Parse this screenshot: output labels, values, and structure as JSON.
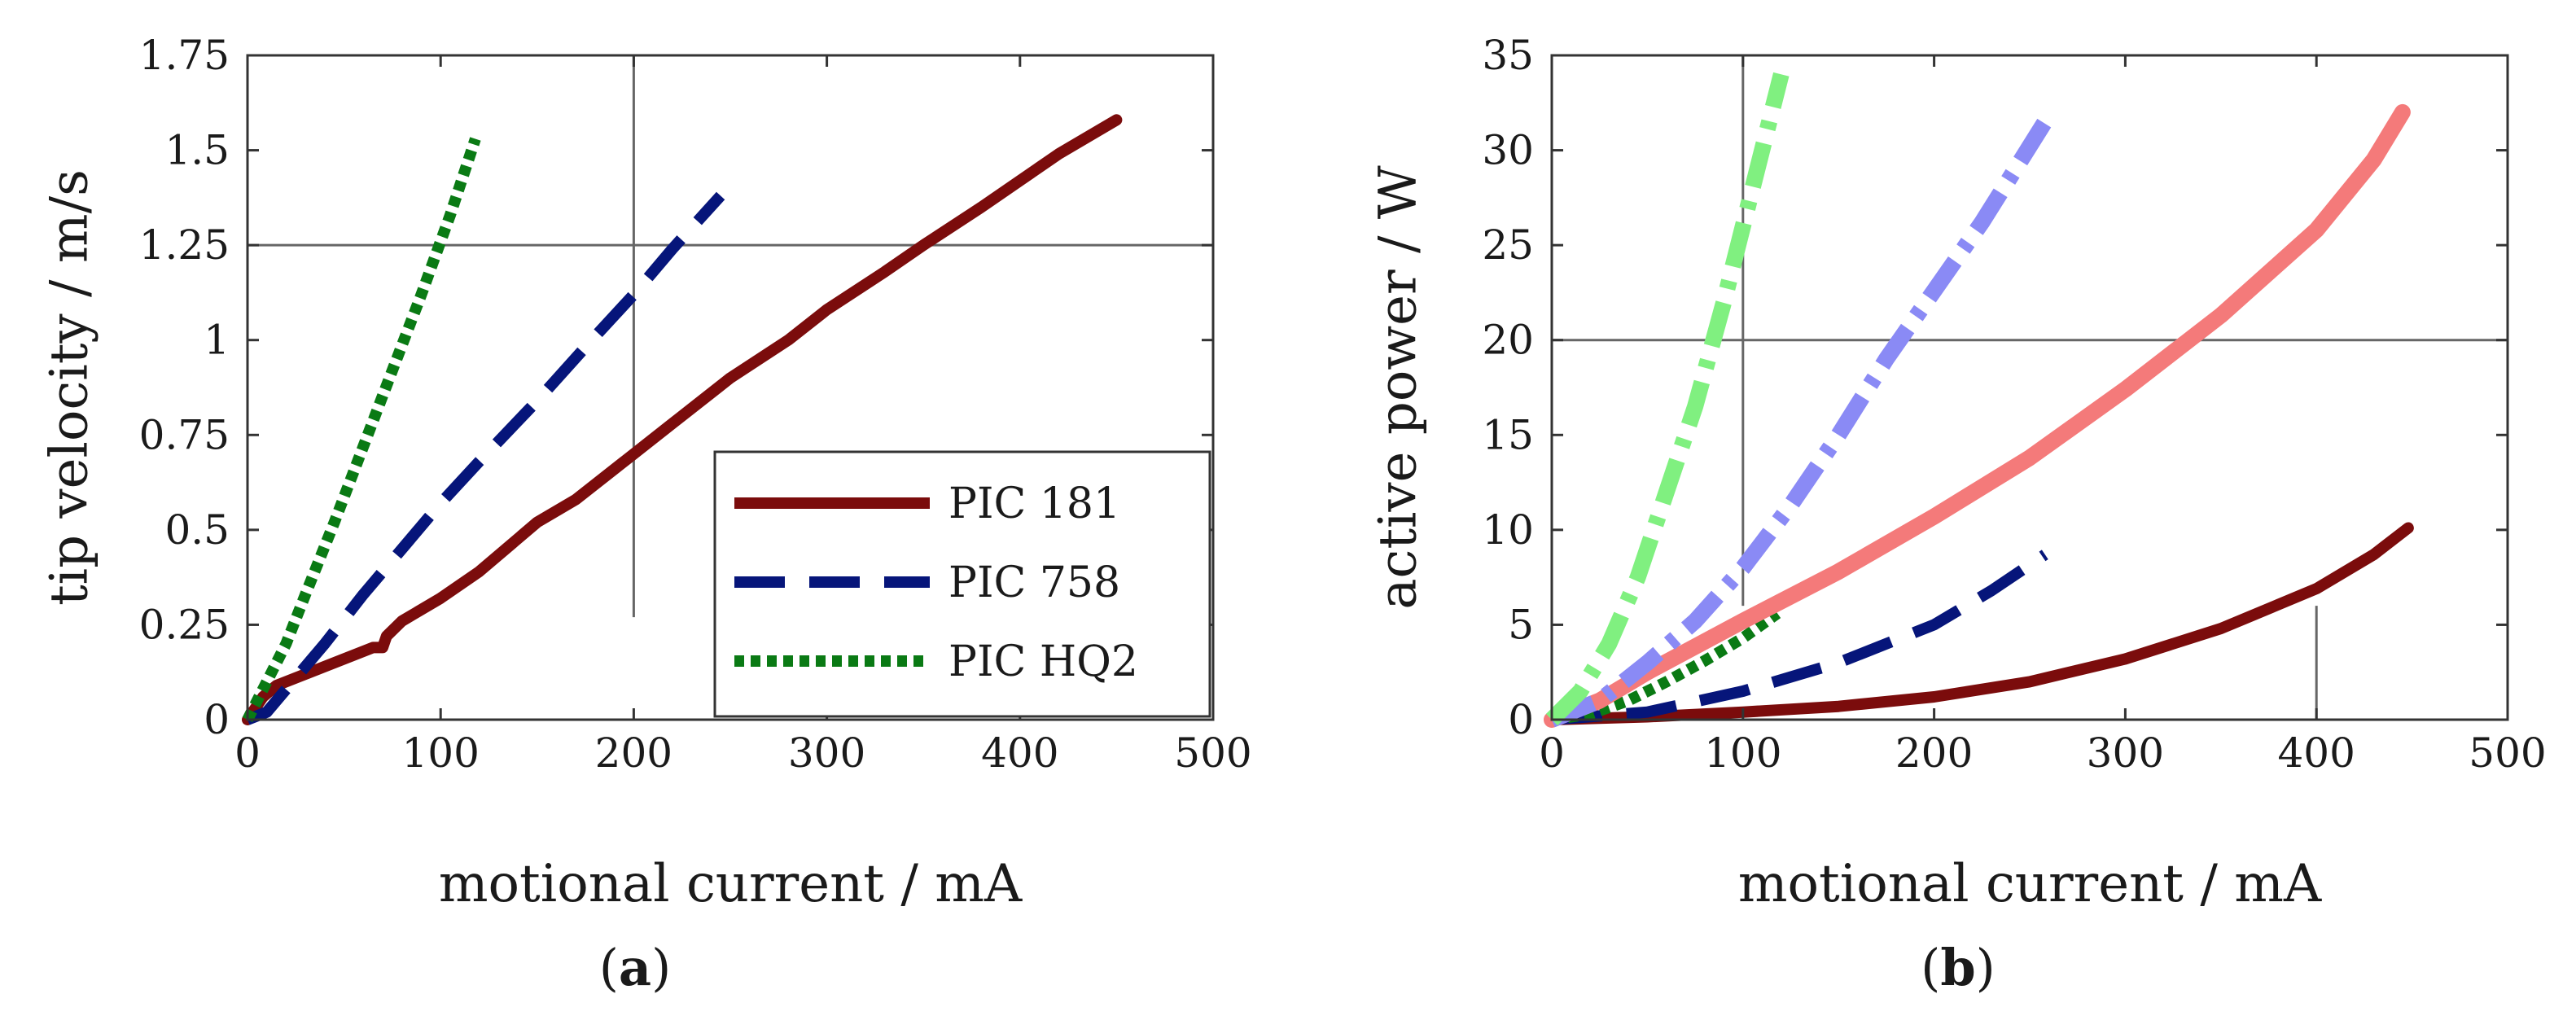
{
  "chart_data": [
    {
      "type": "line",
      "panel_label": "a",
      "xlabel": "motional current / mA",
      "ylabel": "tip velocity / m/s",
      "xlim": [
        0,
        500
      ],
      "ylim": [
        0,
        1.75
      ],
      "xticks": [
        "0",
        "100",
        "200",
        "300",
        "400",
        "500"
      ],
      "yticks": [
        "0",
        "0.25",
        "0.5",
        "0.75",
        "1",
        "1.25",
        "1.5",
        "1.75"
      ],
      "reference_lines": [
        {
          "axis": "x",
          "value": 200,
          "from": 0.27,
          "to": 1.75
        },
        {
          "axis": "y",
          "value": 1.25,
          "from": 0,
          "to": 500
        }
      ],
      "legend": {
        "placement": "lower-right"
      },
      "series": [
        {
          "name": "PIC 181",
          "color": "#7b0c0c",
          "dash": "solid",
          "x": [
            0,
            8,
            15,
            30,
            50,
            65,
            70,
            72,
            80,
            100,
            120,
            150,
            170,
            200,
            220,
            250,
            280,
            300,
            330,
            350,
            380,
            400,
            420,
            450
          ],
          "y": [
            0,
            0.06,
            0.09,
            0.12,
            0.16,
            0.19,
            0.19,
            0.22,
            0.26,
            0.32,
            0.39,
            0.52,
            0.58,
            0.7,
            0.78,
            0.9,
            1.0,
            1.08,
            1.18,
            1.25,
            1.35,
            1.42,
            1.49,
            1.58
          ]
        },
        {
          "name": "PIC 758",
          "color": "#06157a",
          "dash": "long-dash",
          "x": [
            0,
            10,
            20,
            40,
            60,
            80,
            100,
            120,
            150,
            180,
            200,
            220,
            245
          ],
          "y": [
            0,
            0.02,
            0.08,
            0.2,
            0.33,
            0.45,
            0.57,
            0.68,
            0.84,
            1.01,
            1.12,
            1.24,
            1.38
          ]
        },
        {
          "name": "PIC HQ2",
          "color": "#0a7a14",
          "dash": "dotted",
          "x": [
            0,
            10,
            20,
            30,
            45,
            60,
            75,
            90,
            105,
            118
          ],
          "y": [
            0,
            0.1,
            0.2,
            0.33,
            0.52,
            0.72,
            0.92,
            1.12,
            1.33,
            1.53
          ]
        }
      ]
    },
    {
      "type": "line",
      "panel_label": "b",
      "xlabel": "motional current / mA",
      "ylabel": "active power / W",
      "xlim": [
        0,
        500
      ],
      "ylim": [
        0,
        35
      ],
      "xticks": [
        "0",
        "100",
        "200",
        "300",
        "400",
        "500"
      ],
      "yticks": [
        "0",
        "5",
        "10",
        "15",
        "20",
        "25",
        "30",
        "35"
      ],
      "reference_lines": [
        {
          "axis": "x",
          "value": 100,
          "from": 6,
          "to": 35
        },
        {
          "axis": "y",
          "value": 20,
          "from": 0,
          "to": 500
        },
        {
          "axis": "x",
          "value": 400,
          "from": 0,
          "to": 6
        }
      ],
      "series": [
        {
          "name": "PIC 181",
          "color": "#7b0c0c",
          "dash": "solid",
          "x": [
            0,
            50,
            100,
            150,
            200,
            250,
            300,
            350,
            400,
            430,
            448
          ],
          "y": [
            0,
            0.15,
            0.4,
            0.7,
            1.2,
            2.0,
            3.2,
            4.8,
            6.9,
            8.7,
            10.1
          ]
        },
        {
          "name": "PIC 758",
          "color": "#06157a",
          "dash": "long-dash",
          "x": [
            0,
            50,
            100,
            150,
            200,
            230,
            258
          ],
          "y": [
            0,
            0.4,
            1.5,
            3.0,
            5.0,
            6.8,
            8.7
          ]
        },
        {
          "name": "PIC HQ2",
          "color": "#0a7a14",
          "dash": "dotted",
          "x": [
            0,
            20,
            40,
            60,
            80,
            100,
            118
          ],
          "y": [
            0,
            0.3,
            1.0,
            2.0,
            3.1,
            4.3,
            5.6
          ]
        },
        {
          "name": "PIC 181",
          "color": "#f47a7a",
          "dash": "solid-wide",
          "x": [
            0,
            25,
            50,
            100,
            150,
            200,
            250,
            300,
            350,
            400,
            430,
            445
          ],
          "y": [
            0,
            1.0,
            2.5,
            5.2,
            7.8,
            10.7,
            13.8,
            17.4,
            21.3,
            25.8,
            29.5,
            32.0
          ]
        },
        {
          "name": "PIC 758",
          "color": "#8a8af5",
          "dash": "dash-dot-wide",
          "x": [
            0,
            25,
            50,
            75,
            100,
            125,
            150,
            175,
            200,
            225,
            258
          ],
          "y": [
            0,
            1.0,
            3.0,
            5.2,
            8.0,
            11.3,
            15.0,
            19.0,
            22.6,
            26.2,
            31.5
          ]
        },
        {
          "name": "PIC HQ2",
          "color": "#80f080",
          "dash": "dash-dot-wide",
          "x": [
            0,
            15,
            30,
            45,
            60,
            75,
            90,
            105,
            120
          ],
          "y": [
            0,
            1.5,
            4.0,
            7.5,
            12.0,
            16.5,
            22.0,
            28.0,
            34.0
          ]
        }
      ]
    }
  ],
  "legend_entries": [
    "PIC 181",
    "PIC 758",
    "PIC HQ2"
  ],
  "captions": [
    {
      "open": "(",
      "letter": "a",
      "close": ")"
    },
    {
      "open": "(",
      "letter": "b",
      "close": ")"
    }
  ]
}
